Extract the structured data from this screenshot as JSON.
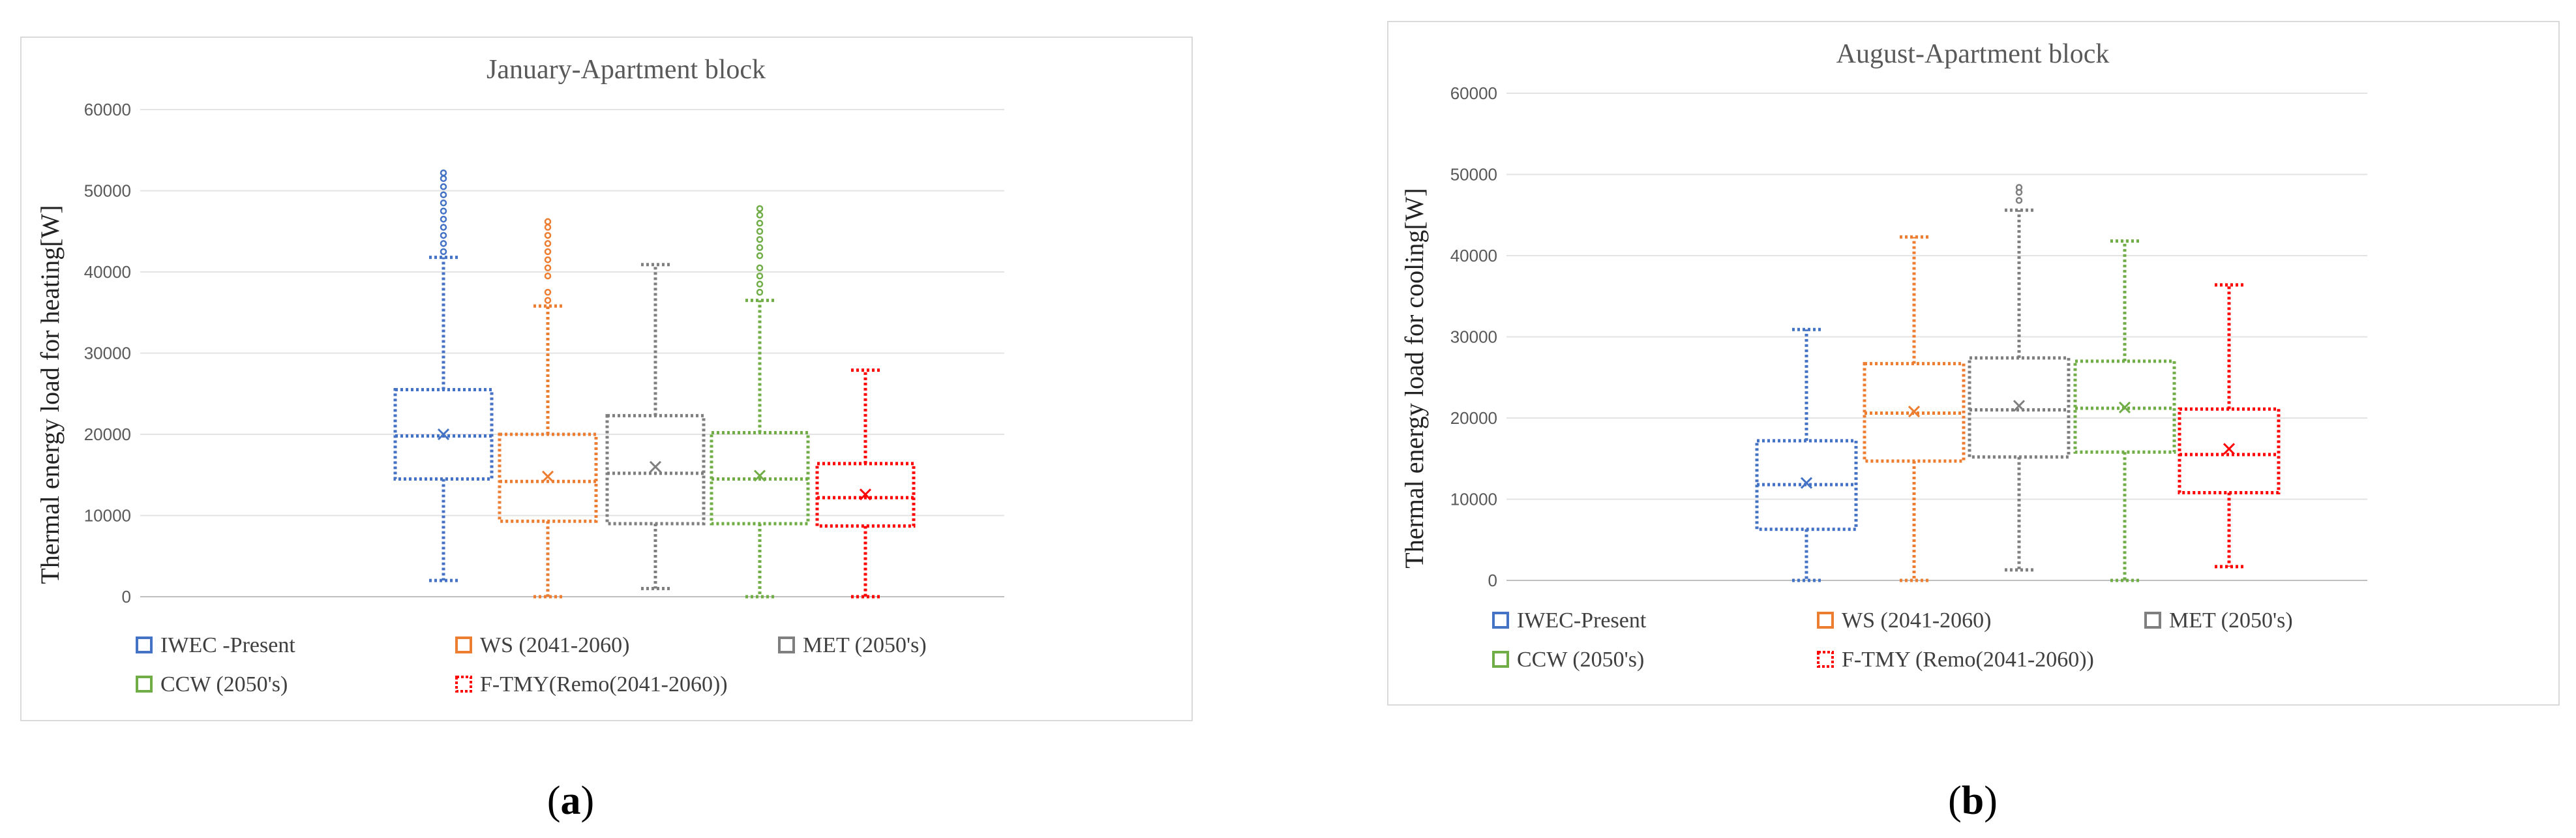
{
  "figure": {
    "caption_a": "a",
    "caption_b": "b"
  },
  "chart_data": [
    {
      "type": "box",
      "title": "January-Apartment block",
      "xlabel": "",
      "ylabel": "Thermal energy load for heating[W]",
      "ylim": [
        0,
        60000
      ],
      "yticks": [
        "0",
        "10000",
        "20000",
        "30000",
        "40000",
        "50000",
        "60000"
      ],
      "grid": true,
      "legend": "bottom",
      "series": [
        {
          "name": "IWEC -Present",
          "color": "#4472C4",
          "min": 2000,
          "q1": 14500,
          "median": 19800,
          "q3": 25500,
          "max": 41800,
          "mean": 20000,
          "outliers": [
            42500,
            43500,
            44500,
            45500,
            46500,
            47500,
            48500,
            49500,
            50500,
            51500,
            52200
          ]
        },
        {
          "name": "WS (2041-2060)",
          "color": "#ED7D31",
          "min": 0,
          "q1": 9300,
          "median": 14200,
          "q3": 20000,
          "max": 35800,
          "mean": 14800,
          "outliers": [
            36500,
            37500,
            39500,
            40500,
            41500,
            42500,
            43500,
            44500,
            45500,
            46200
          ]
        },
        {
          "name": "MET (2050's)",
          "color": "#7F7F7F",
          "min": 1000,
          "q1": 9000,
          "median": 15200,
          "q3": 22300,
          "max": 40900,
          "mean": 16000,
          "outliers": []
        },
        {
          "name": "CCW (2050's)",
          "color": "#70AD47",
          "min": 0,
          "q1": 9000,
          "median": 14500,
          "q3": 20200,
          "max": 36500,
          "mean": 14900,
          "outliers": [
            37500,
            38500,
            39500,
            40500,
            42000,
            43000,
            44000,
            45000,
            46000,
            47000,
            47800
          ]
        },
        {
          "name": "F-TMY(Remo(2041-2060))",
          "color": "#FF0000",
          "min": 0,
          "q1": 8700,
          "median": 12200,
          "q3": 16400,
          "max": 27900,
          "mean": 12600,
          "outliers": []
        }
      ]
    },
    {
      "type": "box",
      "title": "August-Apartment block",
      "xlabel": "",
      "ylabel": "Thermal energy load for cooling[W]",
      "ylim": [
        0,
        60000
      ],
      "yticks": [
        "0",
        "10000",
        "20000",
        "30000",
        "40000",
        "50000",
        "60000"
      ],
      "grid": true,
      "legend": "bottom",
      "series": [
        {
          "name": "IWEC-Present",
          "color": "#4472C4",
          "min": 0,
          "q1": 6300,
          "median": 11800,
          "q3": 17200,
          "max": 30900,
          "mean": 12000,
          "outliers": []
        },
        {
          "name": "WS (2041-2060)",
          "color": "#ED7D31",
          "min": 0,
          "q1": 14700,
          "median": 20600,
          "q3": 26700,
          "max": 42300,
          "mean": 20800,
          "outliers": []
        },
        {
          "name": "MET (2050's)",
          "color": "#7F7F7F",
          "min": 1300,
          "q1": 15200,
          "median": 21000,
          "q3": 27400,
          "max": 45600,
          "mean": 21500,
          "outliers": [
            46800,
            47800,
            48400
          ]
        },
        {
          "name": "CCW (2050's)",
          "color": "#70AD47",
          "min": 0,
          "q1": 15800,
          "median": 21200,
          "q3": 27000,
          "max": 41800,
          "mean": 21300,
          "outliers": []
        },
        {
          "name": "F-TMY (Remo(2041-2060))",
          "color": "#FF0000",
          "min": 1700,
          "q1": 10800,
          "median": 15500,
          "q3": 21100,
          "max": 36400,
          "mean": 16200,
          "outliers": []
        }
      ]
    }
  ]
}
